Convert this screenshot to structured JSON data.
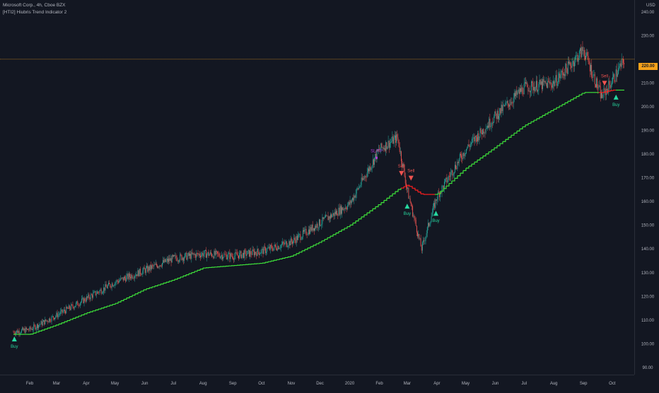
{
  "legend": {
    "symbol_line": "Microsoft Corp., 4h, Cboe BZX",
    "indicator_line": "[HTI2] Hiubris Trend Indicator 2"
  },
  "price_axis": {
    "currency": "USD",
    "last_price_label": "220.00",
    "ticks": [
      "240.00",
      "230.00",
      "220.00",
      "210.00",
      "200.00",
      "190.00",
      "180.00",
      "170.00",
      "160.00",
      "150.00",
      "140.00",
      "130.00",
      "120.00",
      "110.00",
      "100.00",
      "90.00"
    ]
  },
  "time_axis": {
    "labels": [
      "Feb",
      "Mar",
      "Apr",
      "May",
      "Jun",
      "Jul",
      "Aug",
      "Sep",
      "Oct",
      "Nov",
      "Dec",
      "2020",
      "Feb",
      "Mar",
      "Apr",
      "May",
      "Jun",
      "Jul",
      "Aug",
      "Sep",
      "Oct"
    ]
  },
  "colors": {
    "background": "#131722",
    "up_candle": "#26a69a",
    "down_candle": "#ef5350",
    "trend_up": "#3ee23a",
    "trend_down": "#ff1e1e",
    "buy_marker": "#26d9a0",
    "sell_marker": "#ef5350",
    "sl_tp_marker": "#b43cdc",
    "last_price_line": "#f7a21b"
  },
  "chart_data": {
    "type": "line",
    "title": "Microsoft Corp., 4h, Cboe BZX",
    "ylabel": "USD",
    "ylim": [
      87,
      245
    ],
    "x": [
      "2019-01-15",
      "2019-02-01",
      "2019-03-01",
      "2019-04-01",
      "2019-05-01",
      "2019-06-01",
      "2019-07-01",
      "2019-08-01",
      "2019-09-01",
      "2019-10-01",
      "2019-11-01",
      "2019-12-01",
      "2020-01-01",
      "2020-02-01",
      "2020-02-20",
      "2020-03-01",
      "2020-03-16",
      "2020-04-01",
      "2020-05-01",
      "2020-06-01",
      "2020-07-01",
      "2020-08-01",
      "2020-09-01",
      "2020-09-20",
      "2020-10-01",
      "2020-10-14"
    ],
    "series": [
      {
        "name": "Price",
        "values": [
          105,
          106,
          112,
          119,
          126,
          131,
          136,
          138,
          137,
          139,
          143,
          151,
          159,
          182,
          187,
          165,
          140,
          162,
          182,
          196,
          208,
          210,
          224,
          204,
          211,
          220
        ]
      },
      {
        "name": "[HTI2] Hiubris Trend Indicator 2",
        "values": [
          104,
          104,
          108,
          113,
          117,
          123,
          127,
          132,
          133,
          134,
          137,
          143,
          150,
          159,
          165,
          167,
          163,
          163,
          174,
          183,
          192,
          199,
          206,
          206,
          207,
          207
        ]
      }
    ],
    "signals": [
      {
        "date": "2019-01-16",
        "label": "Buy",
        "price": 104
      },
      {
        "date": "2020-01-29",
        "label": "SL/TP",
        "price": 178
      },
      {
        "date": "2020-02-24",
        "label": "Sell",
        "price": 172
      },
      {
        "date": "2020-03-05",
        "label": "Sell",
        "price": 170
      },
      {
        "date": "2020-03-01",
        "label": "Buy",
        "price": 160
      },
      {
        "date": "2020-03-31",
        "label": "Buy",
        "price": 157
      },
      {
        "date": "2020-09-23",
        "label": "Sell",
        "price": 210
      },
      {
        "date": "2020-10-05",
        "label": "Buy",
        "price": 206
      }
    ],
    "last_price": 220,
    "grid": false,
    "legend_position": "top-left"
  }
}
